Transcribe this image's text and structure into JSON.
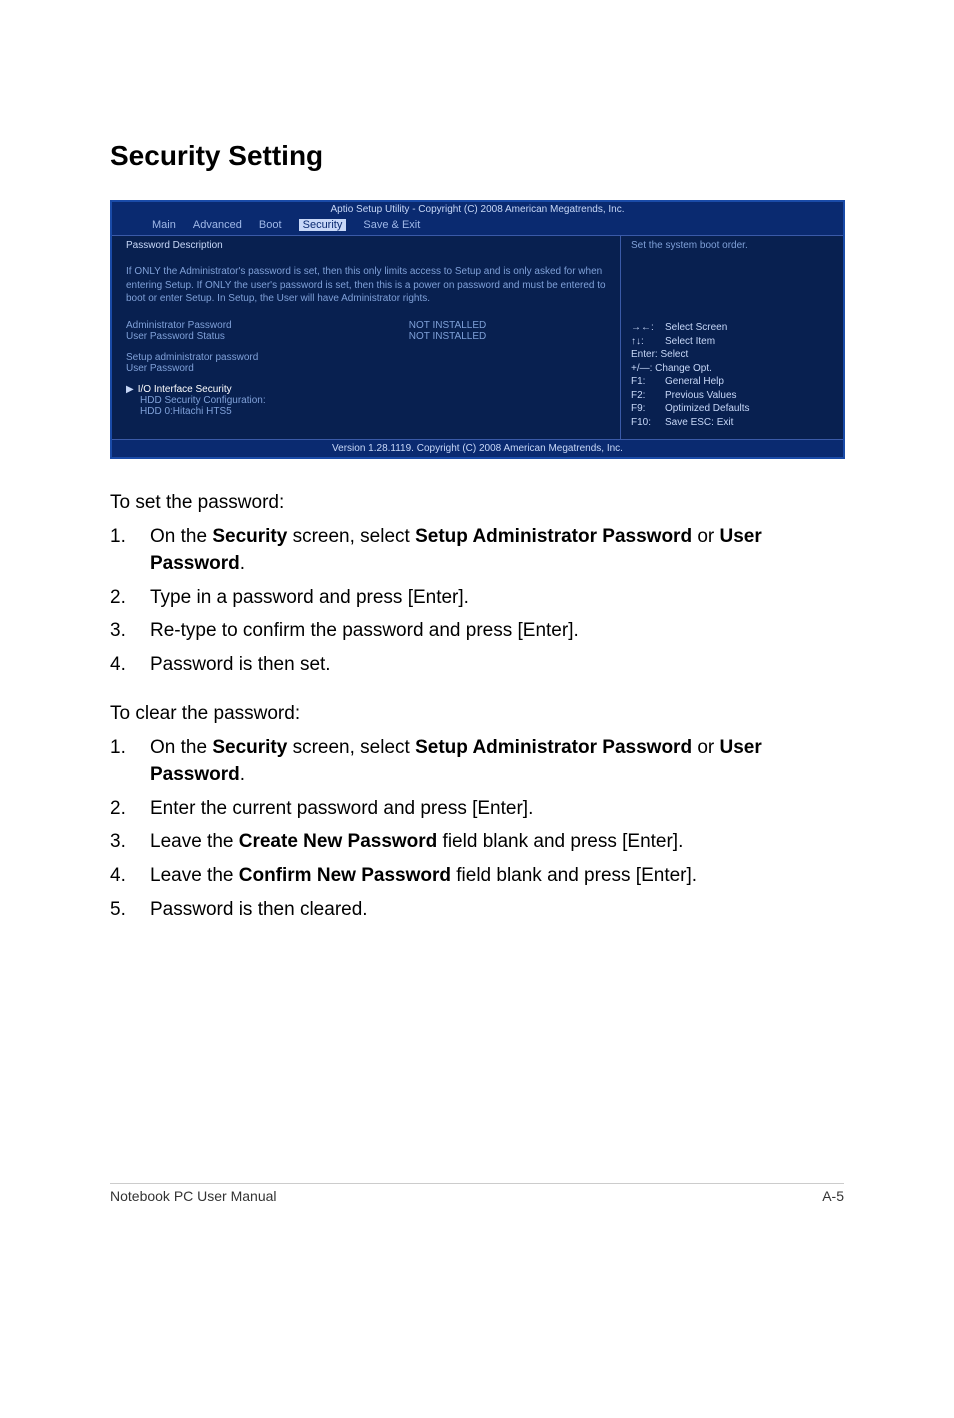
{
  "page": {
    "title": "Security Setting"
  },
  "bios": {
    "header": "Aptio Setup Utility - Copyright (C) 2008 American Megatrends, Inc.",
    "tabs": [
      "Main",
      "Advanced",
      "Boot",
      "Security",
      "Save & Exit"
    ],
    "active_tab_index": 3,
    "left": {
      "desc_title": "Password Description",
      "desc_para": "If ONLY the Administrator's password is set, then this only limits access to Setup and is only asked for when entering Setup. If ONLY the user's password is set, then this is a power on password and must be entered to boot or enter Setup. In Setup, the User will have Administrator rights.",
      "admin_pw_label": "Administrator Password",
      "admin_pw_val": "NOT INSTALLED",
      "user_pw_label": "User Password Status",
      "user_pw_val": "NOT INSTALLED",
      "setup_admin": "Setup administrator password",
      "user_pw": "User Password",
      "io_sec": "I/O Interface Security",
      "hdd_sec": "HDD Security Configuration:",
      "hdd_item": "HDD 0:Hitachi HTS5"
    },
    "right": {
      "top": "Set the system boot order.",
      "help": {
        "l1a": "→←:",
        "l1b": "Select Screen",
        "l2a": "↑↓:",
        "l2b": "Select Item",
        "l3": "Enter: Select",
        "l4": "+/—:  Change Opt.",
        "l5a": "F1:",
        "l5b": "General Help",
        "l6a": "F2:",
        "l6b": "Previous Values",
        "l7a": "F9:",
        "l7b": "Optimized Defaults",
        "l8a": "F10:",
        "l8b": "Save    ESC: Exit"
      }
    },
    "footer": "Version 1.28.1119. Copyright (C) 2008 American Megatrends, Inc."
  },
  "set_pw": {
    "intro": "To set the password:",
    "items": [
      "On the <b>Security</b> screen, select <b>Setup Administrator Password</b> or <b>User Password</b>.",
      "Type in a password and press [Enter].",
      "Re-type to confirm the password and press [Enter].",
      "Password is then set."
    ]
  },
  "clear_pw": {
    "intro": "To clear the password:",
    "items": [
      "On the <b>Security</b> screen, select <b>Setup Administrator Password</b> or <b>User Password</b>.",
      "Enter the current password and press [Enter].",
      "Leave the <b>Create New Password</b> field blank and press [Enter].",
      "Leave the <b>Confirm New Password</b> field blank and press [Enter].",
      "Password is then cleared."
    ]
  },
  "footer": {
    "left": "Notebook PC User Manual",
    "right": "A-5"
  }
}
